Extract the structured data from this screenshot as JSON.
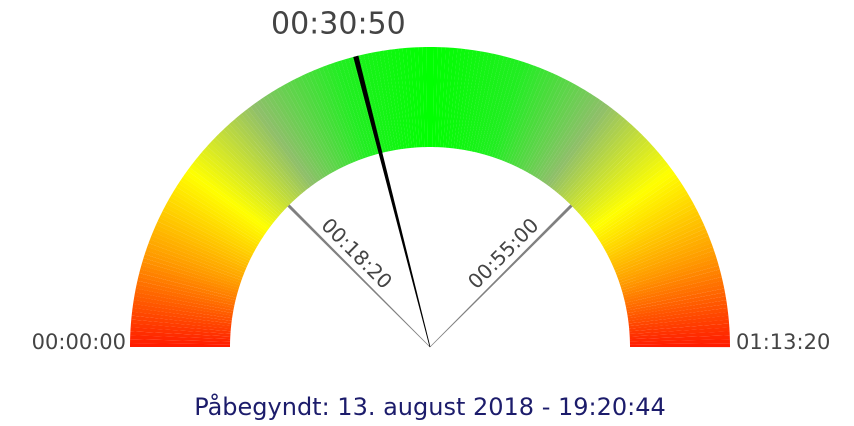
{
  "chart_data": {
    "type": "gauge",
    "value": 1850,
    "value_label": "00:30:50",
    "lim": [
      0,
      4400
    ],
    "ticks": [
      {
        "value": 0,
        "label": "00:00:00"
      },
      {
        "value": 4400,
        "label": "01:13:20"
      }
    ],
    "thresholds": [
      {
        "value": 1100,
        "label": "00:18:20"
      },
      {
        "value": 3300,
        "label": "00:55:00"
      }
    ],
    "colors": [
      "#ff1a00",
      "#ff9a00",
      "#ffff00",
      "#8fbf6a",
      "#22ee22",
      "#00ff00",
      "#22ee22",
      "#8fbf6a",
      "#ffff00",
      "#ff9a00",
      "#ff1a00"
    ],
    "subtitle": "Påbegyndt: 13. august 2018 - 19:20:44"
  }
}
